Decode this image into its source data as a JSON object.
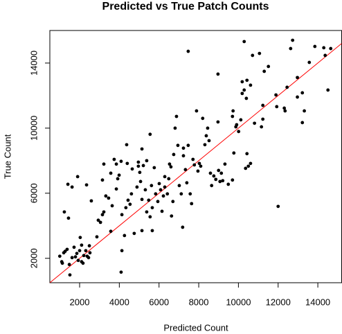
{
  "chart_data": {
    "type": "scatter",
    "title": "Predicted vs True Patch Counts",
    "x_label": "Predicted Count",
    "y_label": "True Count",
    "xlim": [
      500,
      15200
    ],
    "ylim": [
      500,
      16000
    ],
    "xticks": [
      2000,
      4000,
      6000,
      8000,
      10000,
      12000,
      14000
    ],
    "yticks": [
      2000,
      6000,
      10000,
      14000
    ],
    "color": "#000000",
    "reference_line": {
      "slope": 1,
      "intercept": 0,
      "color": "#ff0000"
    },
    "x": [
      1000,
      1100,
      1130,
      1200,
      1270,
      1370,
      1480,
      1510,
      1620,
      1720,
      1790,
      1860,
      1930,
      2000,
      2100,
      2170,
      2210,
      2310,
      2380,
      2450,
      2520,
      2490,
      2030,
      2100,
      1230,
      1410,
      1440,
      1620,
      1900,
      2350,
      2590,
      2870,
      2940,
      3050,
      3150,
      3220,
      3320,
      3460,
      3570,
      3740,
      3640,
      3850,
      3920,
      4130,
      4130,
      4090,
      4260,
      4330,
      4440,
      4540,
      4610,
      4650,
      4750,
      4890,
      4960,
      5030,
      5070,
      5140,
      5210,
      5310,
      5380,
      5480,
      5550,
      5620,
      5660,
      5760,
      5830,
      5940,
      6010,
      6080,
      6150,
      6220,
      6290,
      6420,
      6490,
      6530,
      6600,
      6630,
      6700,
      6740,
      6810,
      6880,
      6950,
      7020,
      7120,
      7190,
      7230,
      7330,
      7400,
      7470,
      7570,
      7640,
      7710,
      7780,
      7890,
      7960,
      8030,
      8100,
      8200,
      8310,
      8380,
      8450,
      8520,
      8590,
      8650,
      8760,
      8860,
      9000,
      9070,
      9140,
      9210,
      9320,
      9490,
      9700,
      9730,
      9770,
      9870,
      9910,
      10010,
      10120,
      10190,
      10290,
      10360,
      10430,
      10500,
      10610,
      10710,
      10810,
      11060,
      11160,
      11230,
      11230,
      11300,
      11510,
      11890,
      11930,
      12310,
      12350,
      12450,
      12730,
      12630,
      12970,
      12970,
      13220,
      13320,
      13570,
      13850,
      14300,
      14370,
      14510,
      14650,
      7470,
      8970,
      10430,
      10400,
      10190,
      10610,
      9700,
      8970,
      10290,
      12000,
      7230,
      6290,
      5660,
      5140,
      4370,
      3850,
      3570,
      3150,
      3220,
      3990,
      4090,
      4400,
      4960,
      5380,
      5550,
      5140,
      13220
    ],
    "values": [
      2130,
      1790,
      1700,
      2340,
      2430,
      2550,
      1620,
      980,
      2040,
      2680,
      2090,
      2300,
      1870,
      2470,
      1790,
      1700,
      2170,
      2470,
      2130,
      2040,
      2340,
      2770,
      3280,
      2810,
      4850,
      6550,
      4470,
      6380,
      7020,
      6510,
      5530,
      3320,
      4340,
      4210,
      4680,
      4850,
      5830,
      5700,
      3660,
      8080,
      5230,
      6260,
      6890,
      4680,
      2470,
      1150,
      3400,
      5110,
      5570,
      5320,
      5960,
      7490,
      3530,
      6380,
      7660,
      7280,
      6720,
      5620,
      7700,
      6210,
      4850,
      5570,
      4550,
      6470,
      3700,
      7570,
      5960,
      5490,
      6590,
      6210,
      4890,
      5830,
      7020,
      5960,
      6890,
      7790,
      7620,
      4600,
      5490,
      8380,
      10000,
      10720,
      8940,
      6470,
      5960,
      3910,
      8770,
      7450,
      6640,
      8940,
      5960,
      5360,
      8080,
      7740,
      11060,
      7360,
      7830,
      7660,
      10600,
      8980,
      9530,
      10000,
      9230,
      7230,
      6470,
      7060,
      6850,
      7400,
      6720,
      7230,
      6770,
      7790,
      6550,
      10720,
      11060,
      8470,
      10080,
      10210,
      9790,
      10510,
      12130,
      12340,
      7530,
      8430,
      7660,
      7830,
      14470,
      10300,
      14590,
      10080,
      10550,
      11400,
      13490,
      13790,
      12040,
      11320,
      11230,
      11060,
      12510,
      15400,
      14890,
      13110,
      11910,
      12170,
      11060,
      14040,
      15020,
      14940,
      14470,
      12340,
      14890,
      14720,
      10380,
      12940,
      11830,
      12850,
      12640,
      6810,
      13320,
      15320,
      5190,
      8300,
      6380,
      5110,
      8720,
      8980,
      7790,
      7230,
      6810,
      7790,
      7110,
      7960,
      7830,
      7910,
      8000,
      9620,
      3700,
      10340
    ]
  }
}
